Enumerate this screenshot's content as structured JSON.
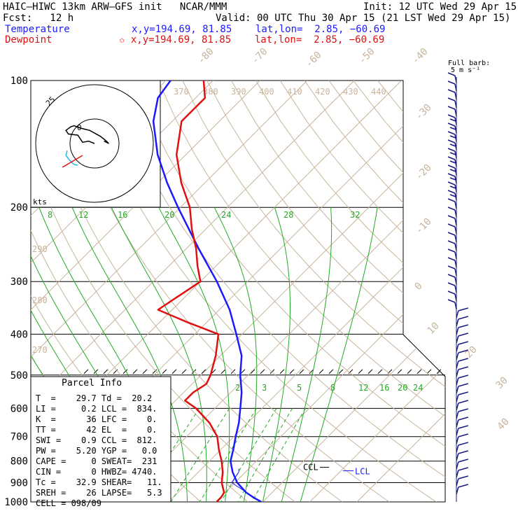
{
  "header": {
    "model": "HAIC–HIWC 13km ARW–GFS init   NCAR/MMM",
    "init": "Init: 12 UTC Wed 29 Apr 15",
    "fcst": "Fcst:   12 h",
    "valid": "Valid: 00 UTC Thu 30 Apr 15 (21 LST Wed 29 Apr 15)",
    "temp_label": "Temperature",
    "temp_loc": "x,y=194.69, 81.85    lat,lon=  2.85, −60.69",
    "dew_label": "Dewpoint",
    "dew_loc": "✩ x,y=194.69, 81.85    lat,lon=  2.85, −60.69",
    "barb_title1": "Full barb:",
    "barb_title2": "5 m s⁻¹"
  },
  "colors": {
    "temperature": "#1a1aff",
    "dewpoint": "#e01010",
    "isotherm": "#c8b49b",
    "mixing_ratio": "#22aa22",
    "barbs": "#1a1a80"
  },
  "chart_data": {
    "type": "line",
    "title": "",
    "xlabel": "",
    "ylabel": "",
    "y_scale": "log",
    "ylim": [
      1000,
      100
    ],
    "pressure_ticks": [
      100,
      200,
      300,
      400,
      500,
      600,
      700,
      800,
      900,
      1000
    ],
    "isotherm_labels": [
      {
        "t": -80,
        "text": "-80"
      },
      {
        "t": -70,
        "text": "-70"
      },
      {
        "t": -60,
        "text": "-60"
      },
      {
        "t": -50,
        "text": "-50"
      },
      {
        "t": -40,
        "text": "-40"
      },
      {
        "t": -30,
        "text": "-30"
      },
      {
        "t": -20,
        "text": "-20"
      },
      {
        "t": -10,
        "text": "-10"
      },
      {
        "t": 0,
        "text": "0"
      },
      {
        "t": 10,
        "text": "10"
      },
      {
        "t": 20,
        "text": "20"
      },
      {
        "t": 30,
        "text": "30"
      },
      {
        "t": 40,
        "text": "40"
      }
    ],
    "theta_labels": [
      "370",
      "380",
      "390",
      "400",
      "410",
      "420",
      "430",
      "440",
      "290",
      "280",
      "270"
    ],
    "mixing_ratio_labels_200": [
      "8",
      "12",
      "16",
      "20",
      "24",
      "28",
      "32"
    ],
    "mixing_ratio_labels_550": [
      "2",
      "3",
      "5",
      "8",
      "12",
      "16",
      "20",
      "24"
    ],
    "series": [
      {
        "name": "Temperature",
        "points": [
          [
            1000,
            29.7
          ],
          [
            975,
            27
          ],
          [
            950,
            24.5
          ],
          [
            900,
            20.5
          ],
          [
            850,
            17.3
          ],
          [
            800,
            14.5
          ],
          [
            750,
            12.6
          ],
          [
            700,
            10.4
          ],
          [
            650,
            8.2
          ],
          [
            600,
            5.4
          ],
          [
            550,
            2.3
          ],
          [
            500,
            -1.7
          ],
          [
            450,
            -5.5
          ],
          [
            400,
            -11.2
          ],
          [
            350,
            -17.8
          ],
          [
            300,
            -26.5
          ],
          [
            250,
            -37.5
          ],
          [
            200,
            -50.5
          ],
          [
            175,
            -58
          ],
          [
            150,
            -66
          ],
          [
            125,
            -74
          ],
          [
            110,
            -78
          ],
          [
            100,
            -79
          ]
        ]
      },
      {
        "name": "Dewpoint",
        "points": [
          [
            1000,
            20.2
          ],
          [
            975,
            20.2
          ],
          [
            950,
            19.8
          ],
          [
            900,
            17.2
          ],
          [
            850,
            15.2
          ],
          [
            800,
            12.6
          ],
          [
            750,
            9.5
          ],
          [
            700,
            6.5
          ],
          [
            650,
            2
          ],
          [
            600,
            -4
          ],
          [
            575,
            -8
          ],
          [
            550,
            -8
          ],
          [
            525,
            -7
          ],
          [
            500,
            -8
          ],
          [
            450,
            -11
          ],
          [
            400,
            -15
          ],
          [
            375,
            -24
          ],
          [
            350,
            -33
          ],
          [
            300,
            -30
          ],
          [
            275,
            -34
          ],
          [
            250,
            -38
          ],
          [
            225,
            -43
          ],
          [
            200,
            -48
          ],
          [
            175,
            -55
          ],
          [
            150,
            -62
          ],
          [
            125,
            -68
          ],
          [
            110,
            -68
          ],
          [
            100,
            -72
          ]
        ]
      }
    ],
    "lcl_label": "LCL",
    "ccl_label": "CCL",
    "hodograph": {
      "kts_label": "kts",
      "ring_label": "25",
      "center_label": "0",
      "path_black": [
        [
          0,
          0
        ],
        [
          -5,
          -2
        ],
        [
          -10,
          -1
        ],
        [
          -14,
          -7
        ],
        [
          -22,
          -8
        ],
        [
          -24,
          -11
        ],
        [
          -20,
          -14
        ],
        [
          -17,
          -15
        ],
        [
          -15,
          -14
        ],
        [
          -12,
          -13
        ],
        [
          -8,
          -12
        ],
        [
          -4,
          -11
        ],
        [
          5,
          -6
        ],
        [
          10,
          -2
        ],
        [
          12,
          0
        ],
        [
          8,
          -2
        ]
      ],
      "path_cyan": [
        [
          -23,
          6
        ],
        [
          -24,
          10
        ],
        [
          -21,
          14
        ],
        [
          -18,
          17
        ],
        [
          -16,
          18
        ],
        [
          -14,
          18
        ]
      ],
      "storm_motion": [
        [
          -27,
          20
        ],
        [
          -10,
          10
        ]
      ]
    },
    "wind_barbs_label": "Full barb"
  },
  "parcel": {
    "title": "Parcel Info",
    "rows": [
      "T  =    29.7 Td =  20.2",
      "LI =     0.2 LCL =  834.",
      "K  =      36 LFC =    0.",
      "TT =      42 EL  =    0.",
      "SWI =    0.9 CCL =  812.",
      "PW =    5.20 YGP =   0.0",
      "CAPE =     0 SWEAT=  231",
      "CIN =      0 HWBZ= 4740.",
      "Tc =    32.9 SHEAR=   11.",
      "SREH =    26 LAPSE=   5.3",
      "CELL = 098/09"
    ]
  }
}
